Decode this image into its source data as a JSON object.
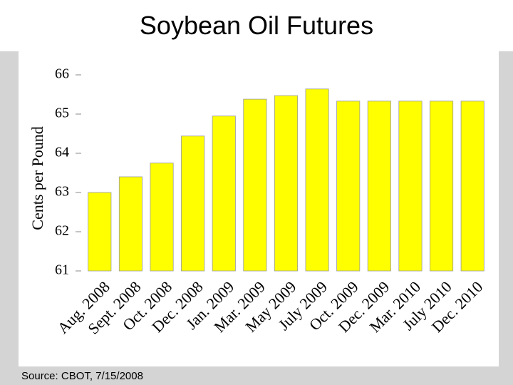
{
  "chart_data": {
    "type": "bar",
    "title": "Soybean Oil Futures",
    "y_label": "Cents per Pound",
    "source": "Source:  CBOT, 7/15/2008",
    "categories": [
      "Aug. 2008",
      "Sept. 2008",
      "Oct. 2008",
      "Dec. 2008",
      "Jan. 2009",
      "Mar. 2009",
      "May 2009",
      "July 2009",
      "Oct. 2009",
      "Dec. 2009",
      "Mar. 2010",
      "July 2010",
      "Dec. 2010"
    ],
    "values": [
      63.0,
      63.4,
      63.75,
      64.44,
      64.95,
      65.38,
      65.47,
      65.64,
      65.33,
      65.33,
      65.33,
      65.33,
      65.33
    ],
    "color": "#ffff00",
    "ylim": [
      61,
      66
    ],
    "yticks": [
      61,
      62,
      63,
      64,
      65,
      66
    ],
    "grid": false
  }
}
